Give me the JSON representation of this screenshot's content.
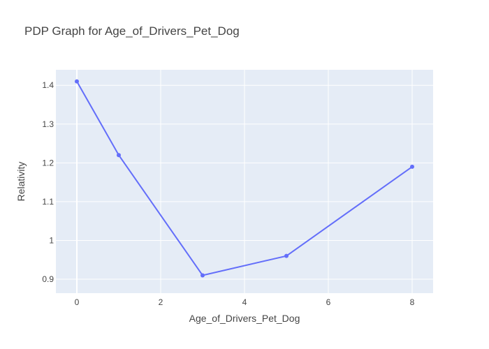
{
  "chart_data": {
    "type": "line",
    "title": "PDP Graph for Age_of_Drivers_Pet_Dog",
    "xlabel": "Age_of_Drivers_Pet_Dog",
    "ylabel": "Relativity",
    "x": [
      0,
      1,
      3,
      5,
      8
    ],
    "series": [
      {
        "values": [
          1.41,
          1.22,
          0.91,
          0.96,
          1.19
        ]
      }
    ],
    "xlim": [
      -0.5,
      8.5
    ],
    "ylim": [
      0.864,
      1.44
    ],
    "xticks": [
      0,
      2,
      4,
      6,
      8
    ],
    "xtick_labels": [
      "0",
      "2",
      "4",
      "6",
      "8"
    ],
    "yticks": [
      0.9,
      1.0,
      1.1,
      1.2,
      1.3,
      1.4
    ],
    "ytick_labels": [
      "0.9",
      "1",
      "1.1",
      "1.2",
      "1.3",
      "1.4"
    ],
    "grid": true,
    "colors": {
      "plot_background": "#E5ECF6",
      "grid": "#ffffff",
      "line": "#636EFA",
      "text": "#444444"
    }
  }
}
